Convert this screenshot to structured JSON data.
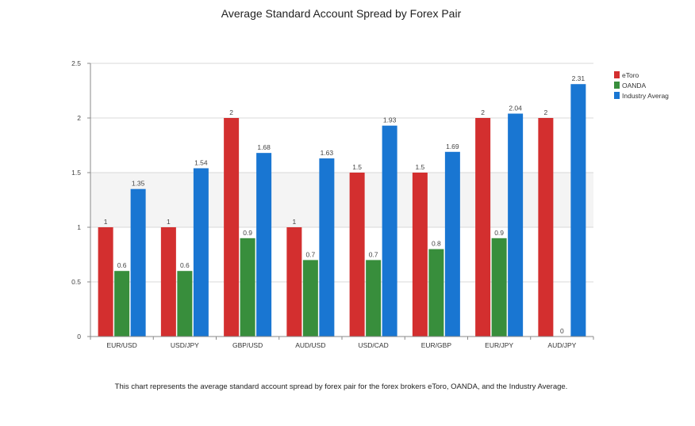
{
  "chart_data": {
    "type": "bar",
    "title": "Average Standard Account Spread by Forex Pair",
    "xlabel": "",
    "ylabel": "",
    "categories": [
      "EUR/USD",
      "USD/JPY",
      "GBP/USD",
      "AUD/USD",
      "USD/CAD",
      "EUR/GBP",
      "EUR/JPY",
      "AUD/JPY"
    ],
    "series": [
      {
        "name": "eToro",
        "color": "#d32f2f",
        "values": [
          1,
          1,
          2,
          1,
          1.5,
          1.5,
          2,
          2
        ],
        "labels": [
          "1",
          "1",
          "2",
          "1",
          "1.5",
          "1.5",
          "2",
          "2"
        ]
      },
      {
        "name": "OANDA",
        "color": "#388e3c",
        "values": [
          0.6,
          0.6,
          0.9,
          0.7,
          0.7,
          0.8,
          0.9,
          0
        ],
        "labels": [
          "0.6",
          "0.6",
          "0.9",
          "0.7",
          "0.7",
          "0.8",
          "0.9",
          "0"
        ]
      },
      {
        "name": "Industry Averag",
        "color": "#1976d2",
        "values": [
          1.35,
          1.54,
          1.68,
          1.63,
          1.93,
          1.69,
          2.04,
          2.31
        ],
        "labels": [
          "1.35",
          "1.54",
          "1.68",
          "1.63",
          "1.93",
          "1.69",
          "2.04",
          "2.31"
        ]
      }
    ],
    "ylim": [
      0,
      2.5
    ],
    "yticks": [
      0,
      0.5,
      1,
      1.5,
      2,
      2.5
    ],
    "ytick_labels": [
      "0",
      "0.5",
      "1",
      "1.5",
      "2",
      "2.5"
    ],
    "grid": true,
    "legend_position": "top-right"
  },
  "caption": "This chart represents the average standard account spread by forex pair for the forex brokers eToro, OANDA, and the Industry Average."
}
